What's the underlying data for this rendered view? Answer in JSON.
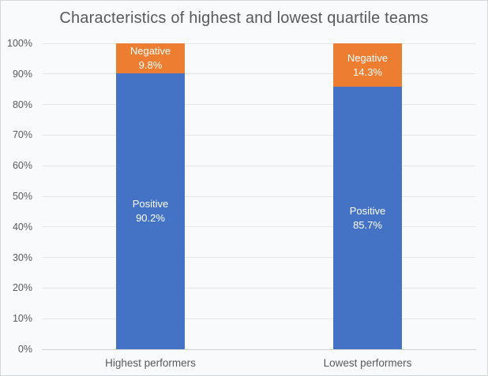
{
  "window": {
    "background": "#f9fafb",
    "border_color": "#d7d7d7",
    "text_color": "#595959"
  },
  "chart_data": {
    "type": "bar",
    "stacked": true,
    "title": "Characteristics of highest and lowest quartile teams",
    "categories": [
      "Highest performers",
      "Lowest performers"
    ],
    "series": [
      {
        "name": "Positive",
        "values": [
          90.2,
          85.7
        ],
        "color": "#4472c4"
      },
      {
        "name": "Negative",
        "values": [
          9.8,
          14.3
        ],
        "color": "#ed7d31"
      }
    ],
    "ylim": [
      0,
      100
    ],
    "y_tick_labels": [
      "0%",
      "10%",
      "20%",
      "30%",
      "40%",
      "50%",
      "60%",
      "70%",
      "80%",
      "90%",
      "100%"
    ],
    "grid": true,
    "legend": "none",
    "value_label_suffix": "%",
    "gridline_color": "#e5e6e8",
    "axis_line_color": "#cfd1d4",
    "bar_label_color": "#ffffff"
  }
}
